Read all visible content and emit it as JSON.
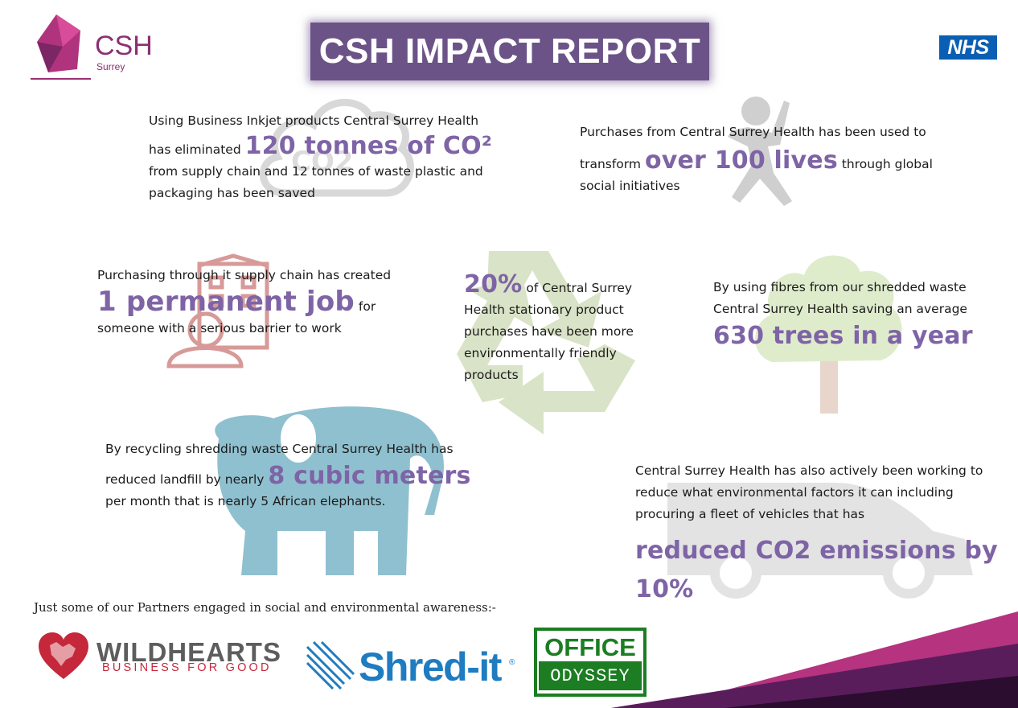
{
  "header": {
    "title": "CSH IMPACT REPORT",
    "logo_name": "CSH",
    "logo_sub": "Surrey",
    "nhs": "NHS"
  },
  "facts": {
    "co2": {
      "line1": "Using Business Inkjet products Central Surrey Health",
      "pre": "has eliminated",
      "highlight": "120 tonnes of CO²",
      "line3": "from supply chain and 12 tonnes of waste plastic and",
      "line4": "packaging has been saved"
    },
    "lives": {
      "line1": "Purchases from Central Surrey Health has been used to",
      "pre": "transform",
      "highlight": "over 100 lives",
      "post": "through global",
      "line3": "social initiatives"
    },
    "job": {
      "line1": "Purchasing through it supply chain has created",
      "highlight": "1 permanent job",
      "post": "for",
      "line3": "someone with a serious barrier to work"
    },
    "stationery": {
      "highlight": "20%",
      "post": "of Central Surrey",
      "line2": "Health stationary product",
      "line3": "purchases have been more",
      "line4": "environmentally friendly",
      "line5": "products"
    },
    "trees": {
      "line1": "By using fibres from our shredded waste",
      "line2": "Central Surrey Health saving an average",
      "highlight": "630 trees in a year"
    },
    "landfill": {
      "line1": "By recycling shredding waste Central Surrey Health has",
      "pre": "reduced landfill by nearly",
      "highlight": "8 cubic meters",
      "line3": "per month that is nearly 5 African elephants."
    },
    "vehicles": {
      "line1": "Central Surrey Health has also actively been working to",
      "line2": "reduce what environmental factors it can including",
      "line3": "procuring a fleet of vehicles that has",
      "highlight1": "reduced CO2 emissions by",
      "highlight2": "10%"
    }
  },
  "partners": {
    "label": "Just some of our Partners engaged in social and environmental awareness:-",
    "wildhearts_name": "WILDHEARTS",
    "wildhearts_tag": "BUSINESS FOR GOOD",
    "shredit": "Shred-it",
    "office_word": "OFFICE",
    "odyssey_word": "ODYSSEY"
  },
  "colors": {
    "highlight": "#7e64a6",
    "title_bg": "#6b5388",
    "nhs_blue": "#0a5fb4",
    "corner_magenta": "#b5337f"
  }
}
